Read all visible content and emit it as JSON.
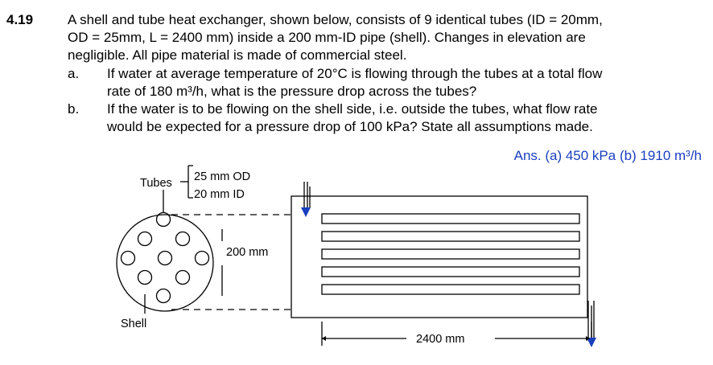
{
  "problem": {
    "number": "4.19",
    "lines": [
      "A shell and tube heat exchanger, shown below, consists of 9 identical tubes (ID = 20mm,",
      "OD = 25mm, L = 2400 mm) inside a 200 mm-ID pipe (shell). Changes in elevation are",
      "negligible. All pipe material is made of commercial steel."
    ],
    "parts": [
      {
        "label": "a.",
        "lines": [
          "If water at average temperature of 20°C is flowing through the tubes at a total flow",
          "rate of  180 m³/h, what is the pressure drop across the tubes?"
        ]
      },
      {
        "label": "b.",
        "lines": [
          "If the water is to be flowing on the shell side, i.e. outside the tubes, what flow rate",
          "would be expected for a pressure drop of 100 kPa? State all assumptions made."
        ]
      }
    ],
    "answer": "Ans. (a) 450 kPa (b) 1910 m³/h"
  },
  "diagram": {
    "tubes_label": "Tubes",
    "od_label": "25 mm OD",
    "id_label": "20 mm ID",
    "shell_diameter_label": "200 mm",
    "shell_label": "Shell",
    "length_label": "2400 mm"
  }
}
